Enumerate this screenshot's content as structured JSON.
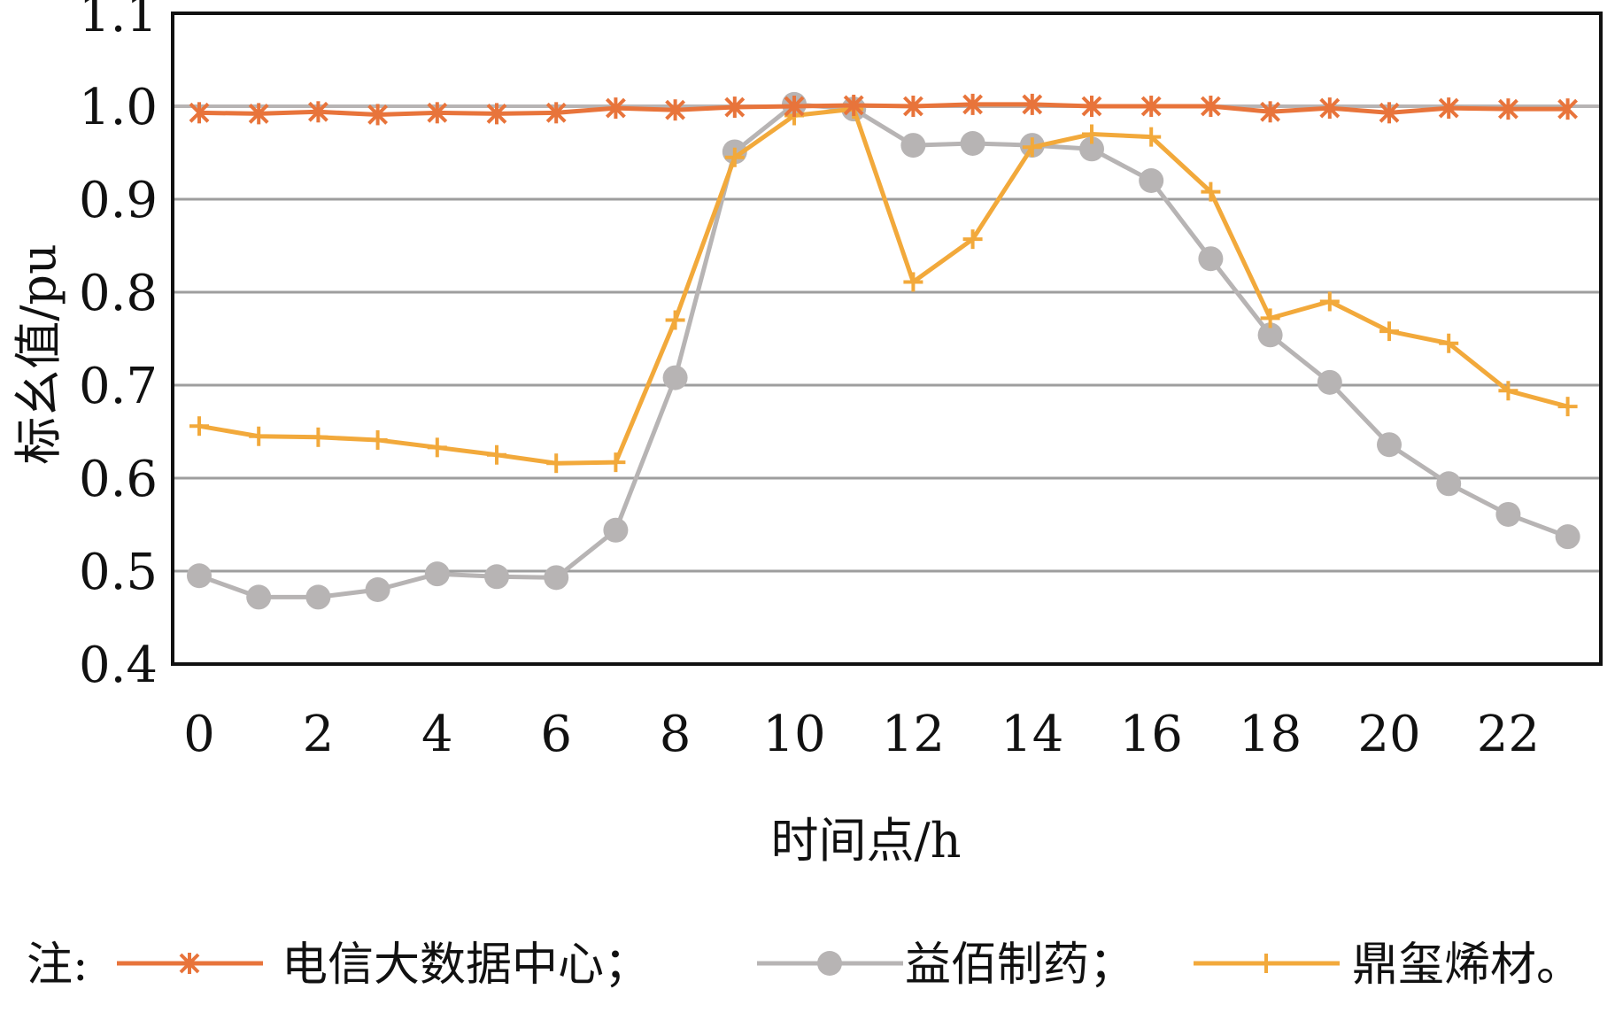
{
  "chart_data": {
    "type": "line",
    "xlabel": "时间点/h",
    "ylabel": "标幺值/pu",
    "xlim": [
      0,
      23
    ],
    "ylim": [
      0.4,
      1.1
    ],
    "x_ticks": [
      0,
      2,
      4,
      6,
      8,
      10,
      12,
      14,
      16,
      18,
      20,
      22
    ],
    "y_ticks": [
      "0.4",
      "0.5",
      "0.6",
      "0.7",
      "0.8",
      "0.9",
      "1.0",
      "1.1"
    ],
    "grid": "horizontal",
    "x": [
      0,
      1,
      2,
      3,
      4,
      5,
      6,
      7,
      8,
      9,
      10,
      11,
      12,
      13,
      14,
      15,
      16,
      17,
      18,
      19,
      20,
      21,
      22,
      23
    ],
    "series": [
      {
        "name": "电信大数据中心",
        "marker": "asterisk",
        "color": "#E8743B",
        "values": [
          0.993,
          0.992,
          0.994,
          0.991,
          0.993,
          0.992,
          0.993,
          0.998,
          0.996,
          0.999,
          1.0,
          1.001,
          1.0,
          1.002,
          1.002,
          1.0,
          1.0,
          1.0,
          0.994,
          0.998,
          0.993,
          0.998,
          0.997,
          0.997
        ]
      },
      {
        "name": "益佰制药",
        "marker": "circle",
        "color": "#B7B4B4",
        "values": [
          0.495,
          0.472,
          0.472,
          0.48,
          0.497,
          0.494,
          0.493,
          0.544,
          0.708,
          0.951,
          1.002,
          0.997,
          0.958,
          0.96,
          0.958,
          0.954,
          0.92,
          0.836,
          0.754,
          0.703,
          0.636,
          0.594,
          0.561,
          0.537
        ]
      },
      {
        "name": "鼎玺烯材",
        "marker": "plus",
        "color": "#F2A93B",
        "values": [
          0.656,
          0.645,
          0.644,
          0.641,
          0.633,
          0.625,
          0.616,
          0.617,
          0.77,
          0.945,
          0.99,
          0.997,
          0.811,
          0.857,
          0.956,
          0.97,
          0.967,
          0.908,
          0.772,
          0.79,
          0.758,
          0.745,
          0.694,
          0.677
        ]
      }
    ],
    "legend": {
      "position": "bottom",
      "prefix": "注:",
      "labels": [
        "电信大数据中心；",
        "益佰制药；",
        "鼎玺烯材。"
      ]
    },
    "reference_line": {
      "y": 1.0,
      "color": "#B7B4B4"
    }
  }
}
